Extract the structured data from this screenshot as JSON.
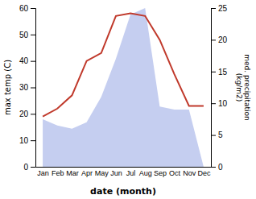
{
  "chart_data": {
    "type": "line",
    "categories": [
      "Jan",
      "Feb",
      "Mar",
      "Apr",
      "May",
      "Jun",
      "Jul",
      "Aug",
      "Sep",
      "Oct",
      "Nov",
      "Dec"
    ],
    "xlabel": "date (month)",
    "ylabel": "max temp (C)",
    "y2label": "med. precipitation\n(kg/m2)",
    "series": [
      {
        "type": "area",
        "axis": "y2",
        "color": "#c5cef0",
        "values": [
          7.5,
          6.5,
          6,
          7,
          11,
          17,
          24,
          25,
          9.5,
          9,
          9,
          0
        ]
      },
      {
        "type": "line",
        "color": "#c0392b",
        "values": [
          19,
          22,
          27,
          40,
          43,
          57,
          58,
          57,
          48,
          35,
          23,
          23
        ]
      }
    ],
    "ylim": [
      0,
      60
    ],
    "yticks": [
      0,
      10,
      20,
      30,
      40,
      50,
      60
    ],
    "y2lim": [
      0,
      25
    ],
    "y2ticks": [
      0,
      5,
      10,
      15,
      20,
      25
    ],
    "grid": false
  }
}
